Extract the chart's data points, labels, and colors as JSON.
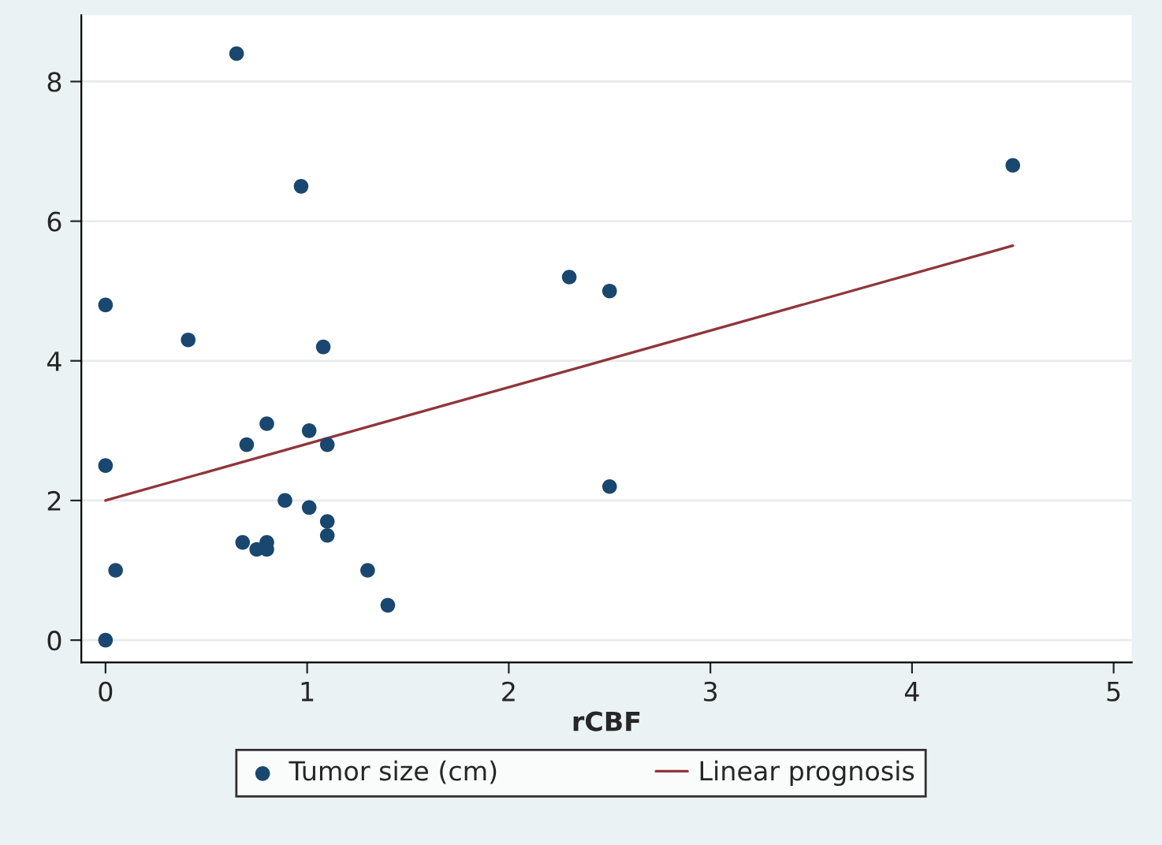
{
  "chart_data": {
    "type": "scatter",
    "xlabel": "rCBF",
    "series": [
      {
        "name": "Tumor size (cm)",
        "color": "#1a476f",
        "marker": "circle",
        "x": [
          0,
          0,
          0,
          0.05,
          0.41,
          0.65,
          0.68,
          0.7,
          0.75,
          0.8,
          0.8,
          0.8,
          0.89,
          0.97,
          1.01,
          1.01,
          1.08,
          1.1,
          1.1,
          1.1,
          1.3,
          1.4,
          2.3,
          2.5,
          2.5,
          4.5
        ],
        "values": [
          0,
          2.5,
          4.8,
          1.0,
          4.3,
          8.4,
          1.4,
          2.8,
          1.3,
          1.4,
          1.3,
          3.1,
          2.0,
          6.5,
          3.0,
          1.9,
          4.2,
          2.8,
          1.7,
          1.5,
          1.0,
          0.5,
          5.2,
          5.0,
          2.2,
          6.8
        ]
      },
      {
        "name": "Linear prognosis",
        "type": "line",
        "color": "#90353b",
        "line_style": "solid",
        "x": [
          0,
          4.5
        ],
        "values": [
          2.0,
          5.65
        ]
      }
    ],
    "xlim": [
      -0.12,
      5.09
    ],
    "ylim": [
      -0.32,
      8.95
    ],
    "xticks": [
      0,
      1,
      2,
      3,
      4,
      5
    ],
    "yticks": [
      0,
      2,
      4,
      6,
      8
    ],
    "grid": "y",
    "legend": "bottom"
  }
}
